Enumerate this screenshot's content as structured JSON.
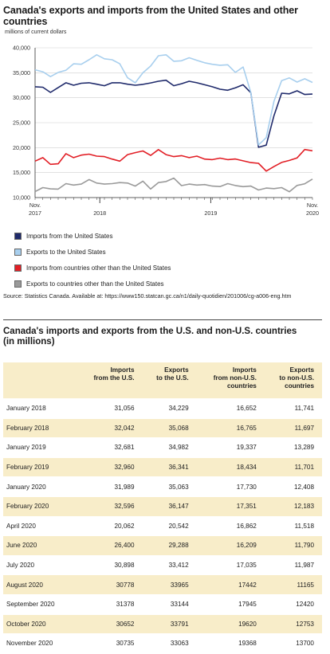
{
  "title": "Canada's exports and imports from the United States and other countries",
  "units_label": "millions of current dollars",
  "colors": {
    "imports_us": "#1f2a6b",
    "exports_us": "#a8cfee",
    "imports_other": "#e21f26",
    "exports_other": "#9a9a9a",
    "table_band": "#f8edc9"
  },
  "chart_data": {
    "type": "line",
    "title": "Canada's exports and imports from the United States and other countries",
    "ylabel": "millions of current dollars",
    "ylim": [
      10000,
      40000
    ],
    "yticks": [
      "10,000",
      "15,000",
      "20,000",
      "25,000",
      "30,000",
      "35,000",
      "40,000"
    ],
    "ytick_values": [
      10000,
      15000,
      20000,
      25000,
      30000,
      35000,
      40000
    ],
    "x_tick_labels": [
      {
        "index": 0,
        "line1": "Nov.",
        "line2": "2017"
      },
      {
        "index": 14,
        "line1": "",
        "line2": "2018"
      },
      {
        "index": 38,
        "line1": "",
        "line2": "2019"
      },
      {
        "index": 60,
        "line1": "Nov.",
        "line2": "2020"
      }
    ],
    "x": [
      "2017-11",
      "2017-12",
      "2018-01",
      "2018-02",
      "2018-03",
      "2018-04",
      "2018-05",
      "2018-06",
      "2018-07",
      "2018-08",
      "2018-09",
      "2018-10",
      "2018-11",
      "2018-12",
      "2019-01",
      "2019-02",
      "2019-03",
      "2019-04",
      "2019-05",
      "2019-06",
      "2019-07",
      "2019-08",
      "2019-09",
      "2019-10",
      "2019-11",
      "2019-12",
      "2020-01",
      "2020-02",
      "2020-03",
      "2020-04",
      "2020-05",
      "2020-06",
      "2020-07",
      "2020-08",
      "2020-09",
      "2020-10",
      "2020-11"
    ],
    "series": [
      {
        "name": "Imports from the United States",
        "color": "#1f2a6b",
        "values": [
          32200,
          32100,
          31056,
          32042,
          33000,
          32500,
          32900,
          33000,
          32700,
          32400,
          33000,
          33000,
          32700,
          32500,
          32681,
          32960,
          33300,
          33500,
          32400,
          32800,
          33300,
          33000,
          32600,
          32200,
          31700,
          31500,
          31989,
          32596,
          31000,
          20062,
          20500,
          26400,
          30898,
          30778,
          31378,
          30652,
          30735
        ]
      },
      {
        "name": "Exports to the United States",
        "color": "#a8cfee",
        "values": [
          35600,
          35200,
          34229,
          35068,
          35500,
          36800,
          36700,
          37600,
          38600,
          37800,
          37600,
          36800,
          34000,
          33000,
          34982,
          36341,
          38400,
          38600,
          37300,
          37400,
          38000,
          37500,
          37000,
          36700,
          36500,
          36600,
          35063,
          36147,
          31000,
          20542,
          22000,
          29288,
          33412,
          33965,
          33144,
          33791,
          33063
        ]
      },
      {
        "name": "Imports from countries other than the United States",
        "color": "#e21f26",
        "values": [
          17300,
          18000,
          16652,
          16765,
          18800,
          18000,
          18500,
          18700,
          18300,
          18200,
          17700,
          17300,
          18600,
          19000,
          19337,
          18434,
          19600,
          18600,
          18200,
          18400,
          18000,
          18300,
          17700,
          17600,
          17900,
          17600,
          17730,
          17351,
          17000,
          16862,
          15300,
          16209,
          17035,
          17442,
          17945,
          19620,
          19368
        ]
      },
      {
        "name": "Exports to countries other than the United States",
        "color": "#9a9a9a",
        "values": [
          11200,
          12000,
          11741,
          11697,
          12800,
          12500,
          12700,
          13600,
          12900,
          12700,
          12800,
          13000,
          12900,
          12300,
          13289,
          11701,
          13000,
          13200,
          13900,
          12400,
          12700,
          12500,
          12600,
          12300,
          12200,
          12800,
          12408,
          12183,
          12300,
          11518,
          11900,
          11790,
          11987,
          11165,
          12420,
          12753,
          13700
        ]
      }
    ]
  },
  "legend": [
    {
      "label": "Imports from the United States",
      "color": "#1f2a6b"
    },
    {
      "label": "Exports to the United States",
      "color": "#a8cfee"
    },
    {
      "label": "Imports from countries other than the United States",
      "color": "#e21f26"
    },
    {
      "label": "Exports to countries other than the United States",
      "color": "#9a9a9a"
    }
  ],
  "source": "Source: Statistics Canada. Available at: https://www150.statcan.gc.ca/n1/daily-quotidien/201006/cg-a006-eng.htm",
  "table": {
    "title_line1": "Canada's imports and exports from the U.S. and non-U.S. countries",
    "title_line2": "(in millions)",
    "headers": [
      {
        "lines": [
          ""
        ]
      },
      {
        "lines": [
          "Imports",
          "from the U.S."
        ]
      },
      {
        "lines": [
          "Exports",
          "to the U.S."
        ]
      },
      {
        "lines": [
          "Imports",
          "from non-U.S.",
          "countries"
        ]
      },
      {
        "lines": [
          "Exports",
          "to non-U.S.",
          "countries"
        ]
      }
    ],
    "rows": [
      [
        "January  2018",
        "31,056",
        "34,229",
        "16,652",
        "11,741"
      ],
      [
        "February  2018",
        "32,042",
        "35,068",
        "16,765",
        "11,697"
      ],
      [
        "January  2019",
        "32,681",
        "34,982",
        "19,337",
        "13,289"
      ],
      [
        "February  2019",
        "32,960",
        "36,341",
        "18,434",
        "11,701"
      ],
      [
        "January  2020",
        "31,989",
        "35,063",
        "17,730",
        "12,408"
      ],
      [
        "February  2020",
        "32,596",
        "36,147",
        "17,351",
        "12,183"
      ],
      [
        "April 2020",
        "20,062",
        "20,542",
        "16,862",
        "11,518"
      ],
      [
        "June 2020",
        "26,400",
        "29,288",
        "16,209",
        "11,790"
      ],
      [
        "July 2020",
        "30,898",
        "33,412",
        "17,035",
        "11,987"
      ],
      [
        "August 2020",
        "30778",
        "33965",
        "17442",
        "11165"
      ],
      [
        "September 2020",
        "31378",
        "33144",
        "17945",
        "12420"
      ],
      [
        "October 2020",
        "30652",
        "33791",
        "19620",
        "12753"
      ],
      [
        "November 2020",
        "30735",
        "33063",
        "19368",
        "13700"
      ]
    ]
  }
}
